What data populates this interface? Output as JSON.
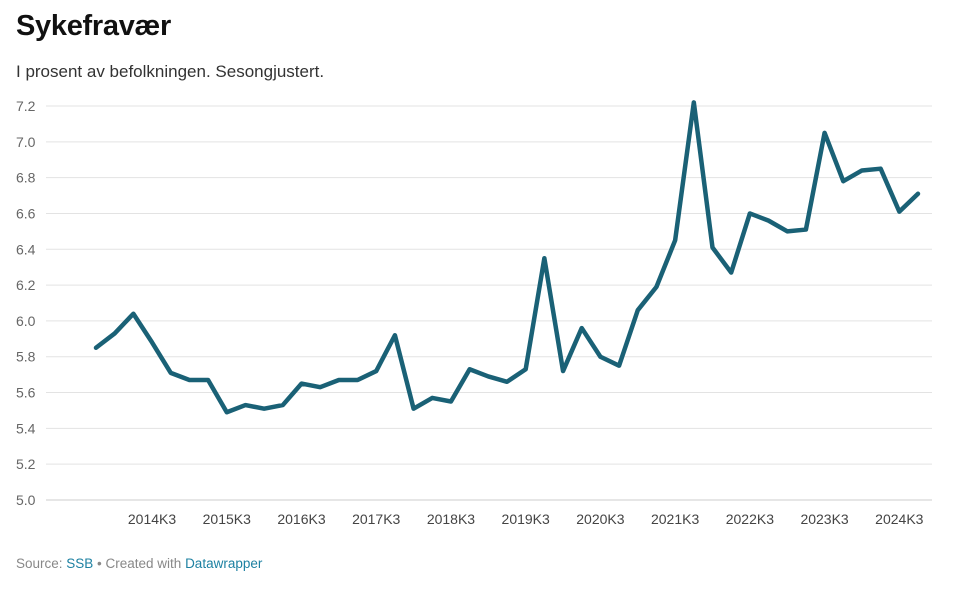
{
  "header": {
    "title": "Sykefravær",
    "subtitle": "I prosent av befolkningen. Sesongjustert."
  },
  "footer": {
    "source_prefix": "Source: ",
    "source_name": "SSB",
    "separator": " • Created with ",
    "tool_name": "Datawrapper"
  },
  "colors": {
    "line": "#1a6176",
    "grid": "#e3e3e3",
    "link": "#1d81a2"
  },
  "chart_data": {
    "type": "line",
    "title": "Sykefravær",
    "subtitle": "I prosent av befolkningen. Sesongjustert.",
    "xlabel": "",
    "ylabel": "",
    "ylim": [
      5.0,
      7.2
    ],
    "yticks": [
      5.0,
      5.2,
      5.4,
      5.6,
      5.8,
      6.0,
      6.2,
      6.4,
      6.6,
      6.8,
      7.0,
      7.2
    ],
    "ytick_labels": [
      "5.0",
      "5.2",
      "5.4",
      "5.6",
      "5.8",
      "6.0",
      "6.2",
      "6.4",
      "6.6",
      "6.8",
      "7.0",
      "7.2"
    ],
    "xticks": [
      "2014K3",
      "2015K3",
      "2016K3",
      "2017K3",
      "2018K3",
      "2019K3",
      "2020K3",
      "2021K3",
      "2022K3",
      "2023K3",
      "2024K3"
    ],
    "grid": true,
    "series": [
      {
        "x": [
          "2013K4",
          "2014K1",
          "2014K2",
          "2014K3",
          "2014K4",
          "2015K1",
          "2015K2",
          "2015K3",
          "2015K4",
          "2016K1",
          "2016K2",
          "2016K3",
          "2016K4",
          "2017K1",
          "2017K2",
          "2017K3",
          "2017K4",
          "2018K1",
          "2018K2",
          "2018K3",
          "2018K4",
          "2019K1",
          "2019K2",
          "2019K3",
          "2019K4",
          "2020K1",
          "2020K2",
          "2020K3",
          "2020K4",
          "2021K1",
          "2021K2",
          "2021K3",
          "2021K4",
          "2022K1",
          "2022K2",
          "2022K3",
          "2022K4",
          "2023K1",
          "2023K2",
          "2023K3",
          "2023K4",
          "2024K1",
          "2024K2",
          "2024K3",
          "2024K4"
        ],
        "values": [
          5.85,
          5.93,
          6.04,
          5.88,
          5.71,
          5.67,
          5.67,
          5.49,
          5.53,
          5.51,
          5.53,
          5.65,
          5.63,
          5.67,
          5.67,
          5.72,
          5.92,
          5.51,
          5.57,
          5.55,
          5.73,
          5.69,
          5.66,
          5.73,
          6.35,
          5.72,
          5.96,
          5.8,
          5.75,
          6.06,
          6.19,
          6.45,
          7.22,
          6.41,
          6.27,
          6.6,
          6.56,
          6.5,
          6.51,
          7.05,
          6.78,
          6.84,
          6.85,
          6.61,
          6.71
        ]
      }
    ]
  }
}
